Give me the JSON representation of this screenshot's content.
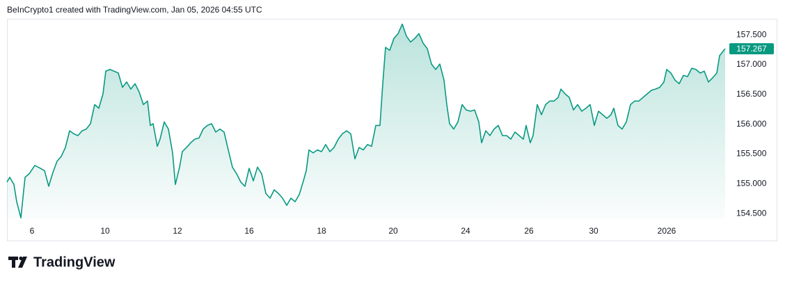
{
  "chart_data": {
    "type": "area",
    "title": "BeInCrypto1 created with TradingView.com, Jan 05, 2026 04:55 UTC",
    "footer": "TradingView",
    "last_price": 157.267,
    "grid": false,
    "xlim": [
      0,
      1032
    ],
    "ylim": [
      154.41,
      157.77
    ],
    "xticks": [
      {
        "value": 36,
        "label": "6"
      },
      {
        "value": 141,
        "label": "10"
      },
      {
        "value": 245,
        "label": "12"
      },
      {
        "value": 348,
        "label": "16"
      },
      {
        "value": 452,
        "label": "18"
      },
      {
        "value": 555,
        "label": "20"
      },
      {
        "value": 659,
        "label": "24"
      },
      {
        "value": 750,
        "label": "26"
      },
      {
        "value": 843,
        "label": "30"
      },
      {
        "value": 948,
        "label": "2026"
      }
    ],
    "yticks": [
      {
        "value": 157.5,
        "label": "157.500"
      },
      {
        "value": 157,
        "label": "157.000"
      },
      {
        "value": 156.5,
        "label": "156.500"
      },
      {
        "value": 156,
        "label": "156.000"
      },
      {
        "value": 155.5,
        "label": "155.500"
      },
      {
        "value": 155,
        "label": "155.000"
      },
      {
        "value": 154.5,
        "label": "154.500"
      }
    ],
    "x": [
      0,
      4,
      10,
      14,
      20,
      26,
      32,
      40,
      48,
      54,
      60,
      66,
      72,
      78,
      84,
      90,
      96,
      102,
      108,
      114,
      120,
      126,
      132,
      138,
      142,
      148,
      154,
      160,
      166,
      172,
      178,
      184,
      190,
      196,
      202,
      206,
      210,
      216,
      220,
      226,
      232,
      238,
      242,
      248,
      252,
      258,
      264,
      270,
      276,
      282,
      288,
      294,
      300,
      306,
      312,
      318,
      324,
      330,
      336,
      342,
      348,
      354,
      360,
      366,
      372,
      378,
      384,
      390,
      396,
      402,
      408,
      414,
      420,
      426,
      430,
      434,
      440,
      446,
      452,
      458,
      464,
      470,
      476,
      482,
      488,
      494,
      500,
      506,
      512,
      518,
      524,
      530,
      536,
      540,
      544,
      550,
      556,
      562,
      568,
      574,
      580,
      586,
      592,
      598,
      604,
      610,
      616,
      622,
      628,
      632,
      636,
      642,
      648,
      654,
      660,
      666,
      672,
      678,
      682,
      688,
      694,
      700,
      706,
      712,
      718,
      724,
      730,
      736,
      742,
      746,
      752,
      756,
      762,
      768,
      774,
      780,
      786,
      792,
      796,
      802,
      808,
      814,
      820,
      826,
      832,
      838,
      844,
      850,
      856,
      862,
      868,
      872,
      878,
      884,
      890,
      896,
      902,
      908,
      914,
      920,
      926,
      932,
      938,
      944,
      948,
      954,
      960,
      966,
      972,
      978,
      984,
      990,
      996,
      1002,
      1008,
      1014,
      1020,
      1024,
      1030,
      1032
    ],
    "series": [
      {
        "color": "#089981",
        "values": [
          155.03,
          155.11,
          154.99,
          154.7,
          154.43,
          155.11,
          155.17,
          155.31,
          155.26,
          155.22,
          154.96,
          155.19,
          155.38,
          155.46,
          155.61,
          155.89,
          155.84,
          155.81,
          155.89,
          155.92,
          156.01,
          156.33,
          156.27,
          156.51,
          156.89,
          156.92,
          156.89,
          156.86,
          156.62,
          156.71,
          156.59,
          156.68,
          156.54,
          156.33,
          156.39,
          155.98,
          156.01,
          155.63,
          155.75,
          156.04,
          155.92,
          155.52,
          154.99,
          155.28,
          155.54,
          155.61,
          155.69,
          155.75,
          155.77,
          155.92,
          155.98,
          156.01,
          155.87,
          155.92,
          155.87,
          155.57,
          155.28,
          155.17,
          155.03,
          154.96,
          155.26,
          155.05,
          155.28,
          155.17,
          154.84,
          154.76,
          154.9,
          154.84,
          154.76,
          154.64,
          154.76,
          154.7,
          154.82,
          155.05,
          155.22,
          155.57,
          155.52,
          155.57,
          155.54,
          155.66,
          155.54,
          155.61,
          155.75,
          155.84,
          155.89,
          155.84,
          155.42,
          155.61,
          155.57,
          155.66,
          155.63,
          155.98,
          155.98,
          156.68,
          157.29,
          157.24,
          157.44,
          157.52,
          157.68,
          157.48,
          157.38,
          157.44,
          157.52,
          157.36,
          157.27,
          157.01,
          156.92,
          157.01,
          156.74,
          156.33,
          156.01,
          155.92,
          156.04,
          156.33,
          156.24,
          156.22,
          156.24,
          156.04,
          155.69,
          155.89,
          155.81,
          155.92,
          155.98,
          155.81,
          155.81,
          155.75,
          155.87,
          155.81,
          155.75,
          155.98,
          155.69,
          155.81,
          156.33,
          156.16,
          156.33,
          156.39,
          156.39,
          156.45,
          156.59,
          156.51,
          156.45,
          156.24,
          156.33,
          156.22,
          156.27,
          156.33,
          155.98,
          156.22,
          156.16,
          156.1,
          156.16,
          156.27,
          155.98,
          155.92,
          156.04,
          156.33,
          156.39,
          156.39,
          156.45,
          156.51,
          156.57,
          156.59,
          156.62,
          156.71,
          156.92,
          156.86,
          156.74,
          156.68,
          156.82,
          156.8,
          156.94,
          156.92,
          156.86,
          156.89,
          156.71,
          156.78,
          156.86,
          157.15,
          157.24,
          157.267
        ]
      }
    ]
  }
}
